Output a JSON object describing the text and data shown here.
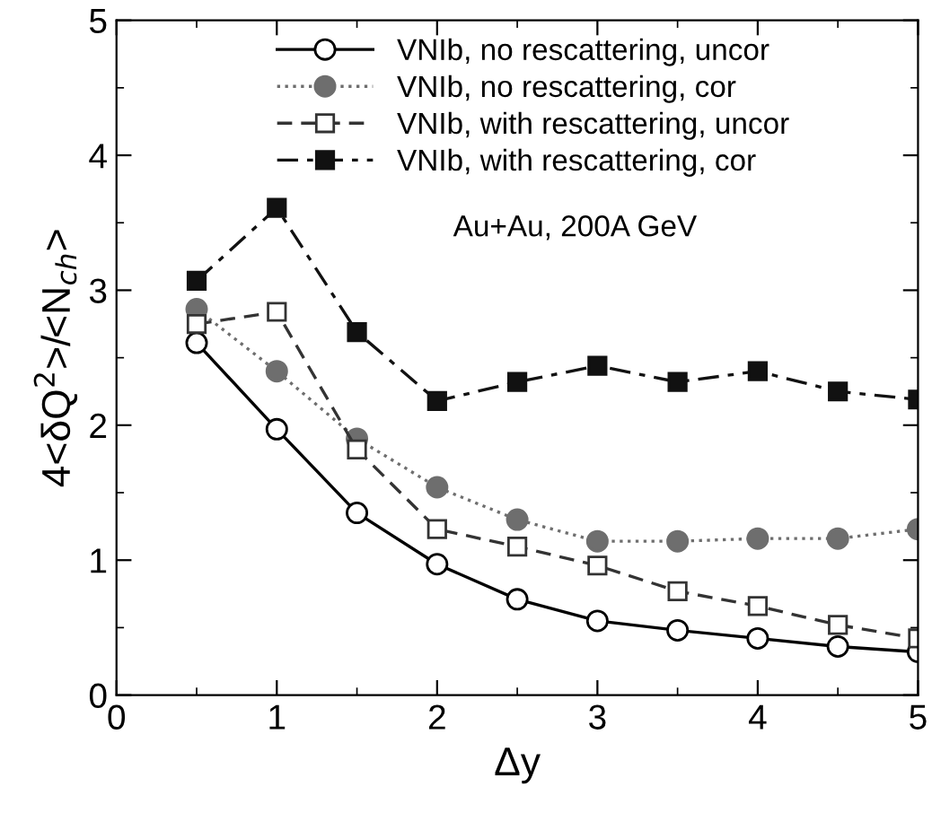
{
  "chart_data": {
    "type": "line",
    "xlabel": "Δy",
    "ylabel": "4<δQ$^{2}$>/<N$_{ch}$>",
    "annotations": [
      "Au+Au, 200A GeV"
    ],
    "x": [
      0.5,
      1,
      1.5,
      2,
      2.5,
      3,
      3.5,
      4,
      4.5,
      5
    ],
    "series": [
      {
        "name": "VNIb, no rescattering, uncor",
        "color": "#000000",
        "marker": "circle",
        "line_style": "solid",
        "values": [
          2.61,
          1.97,
          1.35,
          0.97,
          0.71,
          0.55,
          0.48,
          0.42,
          0.36,
          0.32
        ]
      },
      {
        "name": "VNIb, no rescattering, cor",
        "color": "#6e6e6e",
        "marker": "circle",
        "line_style": "dotted",
        "values": [
          2.86,
          2.4,
          1.9,
          1.54,
          1.3,
          1.14,
          1.14,
          1.16,
          1.16,
          1.23
        ]
      },
      {
        "name": "VNIb, with rescattering, uncor",
        "color": "#333333",
        "marker": "square",
        "line_style": "dashed",
        "values": [
          2.75,
          2.84,
          1.82,
          1.23,
          1.1,
          0.96,
          0.77,
          0.66,
          0.52,
          0.42
        ]
      },
      {
        "name": "VNIb, with rescattering, cor",
        "color": "#111111",
        "marker": "square",
        "line_style": "dashdot",
        "values": [
          3.07,
          3.61,
          2.69,
          2.18,
          2.32,
          2.44,
          2.32,
          2.4,
          2.25,
          2.19
        ]
      }
    ],
    "xlim": [
      0,
      5
    ],
    "ylim": [
      0,
      5
    ],
    "xticks": [
      0,
      1,
      2,
      3,
      4,
      5
    ],
    "yticks": [
      0,
      1,
      2,
      3,
      4,
      5
    ],
    "grid": false,
    "legend": "top"
  }
}
